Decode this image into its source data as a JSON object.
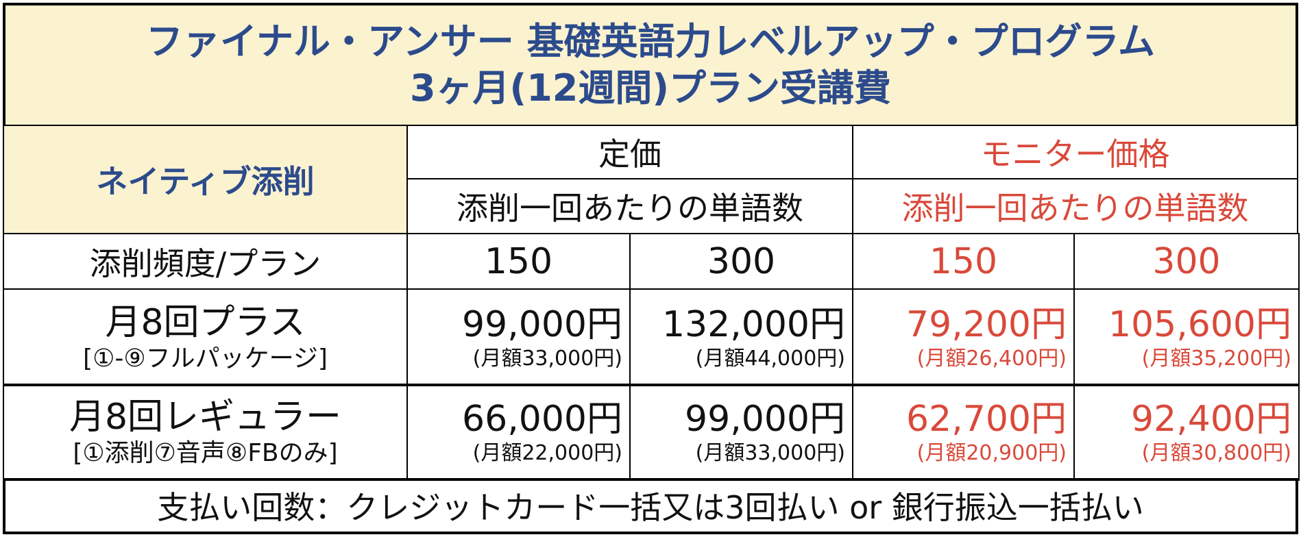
{
  "title": [
    "ファイナル・アンサー 基礎英語力レベルアップ・プログラム",
    "3ヶ月(12週間)プラン受講費"
  ],
  "header": {
    "corner": "ネイティブ添削",
    "regular": "定価",
    "regular_sub": "添削一回あたりの単語数",
    "monitor": "モニター価格",
    "monitor_sub": "添削一回あたりの単語数"
  },
  "columns_row": {
    "label": "添削頻度/プラン",
    "words": [
      "150",
      "300",
      "150",
      "300"
    ]
  },
  "rows": [
    {
      "plan": "月8回プラス",
      "detail": "[①-⑨フルパッケージ]",
      "cells": [
        {
          "price": "99,000円",
          "monthly": "(月額33,000円)"
        },
        {
          "price": "132,000円",
          "monthly": "(月額44,000円)"
        },
        {
          "price": "79,200円",
          "monthly": "(月額26,400円)"
        },
        {
          "price": "105,600円",
          "monthly": "(月額35,200円)"
        }
      ]
    },
    {
      "plan": "月8回レギュラー",
      "detail": "[①添削⑦音声⑧FBのみ]",
      "cells": [
        {
          "price": "66,000円",
          "monthly": "(月額22,000円)"
        },
        {
          "price": "99,000円",
          "monthly": "(月額33,000円)"
        },
        {
          "price": "62,700円",
          "monthly": "(月額20,900円)"
        },
        {
          "price": "92,400円",
          "monthly": "(月額30,800円)"
        }
      ]
    }
  ],
  "footer": "支払い回数：クレジットカード一括又は3回払い or 銀行振込一括払い"
}
